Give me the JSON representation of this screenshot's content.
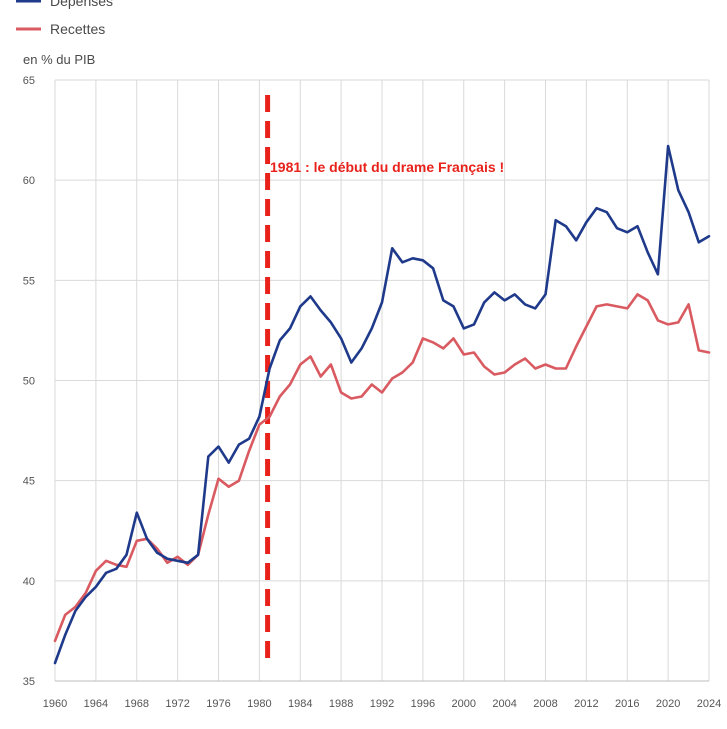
{
  "chart_data": {
    "type": "line",
    "unit_label": "en % du PIB",
    "xlim": [
      1960,
      2024
    ],
    "ylim": [
      35,
      65
    ],
    "x_ticks": [
      1960,
      1964,
      1968,
      1972,
      1976,
      1980,
      1984,
      1988,
      1992,
      1996,
      2000,
      2004,
      2008,
      2012,
      2016,
      2020,
      2024
    ],
    "y_ticks": [
      35,
      40,
      45,
      50,
      55,
      60,
      65
    ],
    "grid": true,
    "legend_position": "top-left",
    "x": [
      1960,
      1961,
      1962,
      1963,
      1964,
      1965,
      1966,
      1967,
      1968,
      1969,
      1970,
      1971,
      1972,
      1973,
      1974,
      1975,
      1976,
      1977,
      1978,
      1979,
      1980,
      1981,
      1982,
      1983,
      1984,
      1985,
      1986,
      1987,
      1988,
      1989,
      1990,
      1991,
      1992,
      1993,
      1994,
      1995,
      1996,
      1997,
      1998,
      1999,
      2000,
      2001,
      2002,
      2003,
      2004,
      2005,
      2006,
      2007,
      2008,
      2009,
      2010,
      2011,
      2012,
      2013,
      2014,
      2015,
      2016,
      2017,
      2018,
      2019,
      2020,
      2021,
      2022,
      2023,
      2024
    ],
    "series": [
      {
        "name": "Dépenses",
        "color": "#1f3a8a",
        "values": [
          35.9,
          37.3,
          38.5,
          39.2,
          39.7,
          40.4,
          40.6,
          41.3,
          43.4,
          42.1,
          41.4,
          41.1,
          41.0,
          40.9,
          41.3,
          46.2,
          46.7,
          45.9,
          46.8,
          47.1,
          48.2,
          50.6,
          52.0,
          52.6,
          53.7,
          54.2,
          53.5,
          52.9,
          52.1,
          50.9,
          51.6,
          52.6,
          53.9,
          56.6,
          55.9,
          56.1,
          56.0,
          55.6,
          54.0,
          53.7,
          52.6,
          52.8,
          53.9,
          54.4,
          54.0,
          54.3,
          53.8,
          53.6,
          54.3,
          58.0,
          57.7,
          57.0,
          57.9,
          58.6,
          58.4,
          57.6,
          57.4,
          57.7,
          56.4,
          55.3,
          61.7,
          59.5,
          58.4,
          56.9,
          57.2
        ]
      },
      {
        "name": "Recettes",
        "color": "#d95a60",
        "values": [
          37.0,
          38.3,
          38.7,
          39.4,
          40.5,
          41.0,
          40.8,
          40.7,
          42.0,
          42.1,
          41.6,
          40.9,
          41.2,
          40.8,
          41.3,
          43.3,
          45.1,
          44.7,
          45.0,
          46.5,
          47.8,
          48.2,
          49.2,
          49.8,
          50.8,
          51.2,
          50.2,
          50.8,
          49.4,
          49.1,
          49.2,
          49.8,
          49.4,
          50.1,
          50.4,
          50.9,
          52.1,
          51.9,
          51.6,
          52.1,
          51.3,
          51.4,
          50.7,
          50.3,
          50.4,
          50.8,
          51.1,
          50.6,
          50.8,
          50.6,
          50.6,
          51.7,
          52.7,
          53.7,
          53.8,
          53.7,
          53.6,
          54.3,
          54.0,
          53.0,
          52.8,
          52.9,
          53.8,
          51.5,
          51.4
        ]
      }
    ],
    "annotation": {
      "text": "1981 : le début du drame Français !",
      "x": 1981,
      "color": "#e8221a"
    }
  }
}
